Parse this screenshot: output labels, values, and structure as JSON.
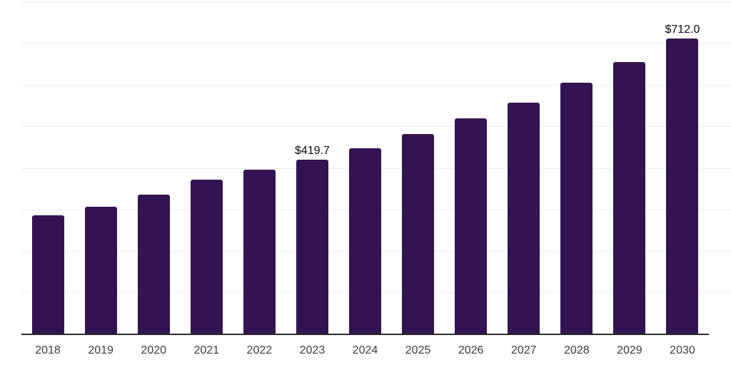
{
  "chart": {
    "background_color": "#ffffff",
    "bar_color": "#341450",
    "axis_line_color": "#2b2b2b",
    "gridline_color": "#ededed",
    "data_label_color": "#0a0a0a",
    "tick_label_color": "#3d3d3d"
  },
  "chart_data": {
    "type": "bar",
    "title": "",
    "xlabel": "",
    "ylabel": "",
    "categories": [
      "2018",
      "2019",
      "2020",
      "2021",
      "2022",
      "2023",
      "2024",
      "2025",
      "2026",
      "2027",
      "2028",
      "2029",
      "2030"
    ],
    "values": [
      285,
      306,
      335,
      371,
      395,
      419.7,
      448,
      481,
      519,
      557,
      605,
      656,
      712
    ],
    "data_labels": {
      "2023": "$419.7",
      "2030": "$712.0"
    },
    "ylim": [
      0,
      800
    ],
    "gridline_step": 100,
    "grid": "horizontal",
    "y_axis_labels_visible": false,
    "legend": "none"
  }
}
